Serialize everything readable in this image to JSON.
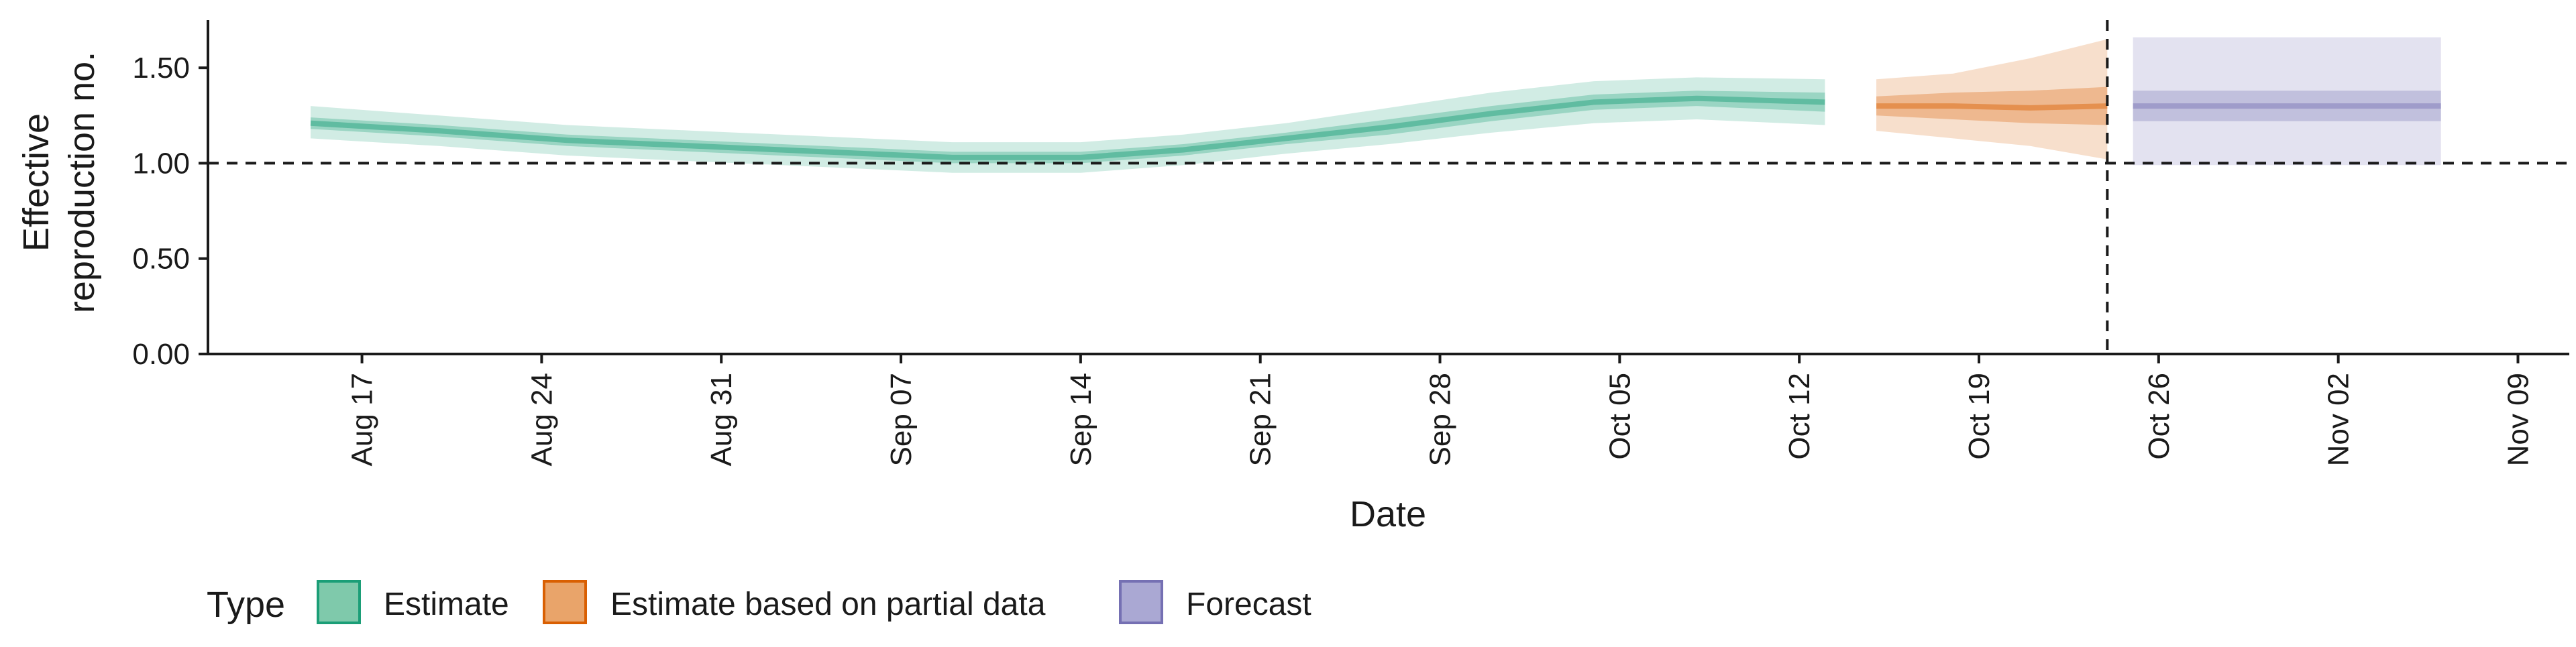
{
  "chart_data": {
    "type": "area",
    "title": "",
    "xlabel": "Date",
    "ylabel": [
      "Effective",
      "reproduction no."
    ],
    "ylim": [
      0,
      1.75
    ],
    "y_ticks": [
      {
        "value": 0,
        "label": "0.00"
      },
      {
        "value": 0.5,
        "label": "0.50"
      },
      {
        "value": 1.0,
        "label": "1.00"
      },
      {
        "value": 1.5,
        "label": "1.50"
      }
    ],
    "xlim": [
      "2021-08-11",
      "2021-11-11"
    ],
    "x_ticks": [
      {
        "date": "2021-08-17",
        "label": "Aug 17"
      },
      {
        "date": "2021-08-24",
        "label": "Aug 24"
      },
      {
        "date": "2021-08-31",
        "label": "Aug 31"
      },
      {
        "date": "2021-09-07",
        "label": "Sep 07"
      },
      {
        "date": "2021-09-14",
        "label": "Sep 14"
      },
      {
        "date": "2021-09-21",
        "label": "Sep 21"
      },
      {
        "date": "2021-09-28",
        "label": "Sep 28"
      },
      {
        "date": "2021-10-05",
        "label": "Oct 05"
      },
      {
        "date": "2021-10-12",
        "label": "Oct 12"
      },
      {
        "date": "2021-10-19",
        "label": "Oct 19"
      },
      {
        "date": "2021-10-26",
        "label": "Oct 26"
      },
      {
        "date": "2021-11-02",
        "label": "Nov 02"
      },
      {
        "date": "2021-11-09",
        "label": "Nov 09"
      }
    ],
    "reference_lines": {
      "horizontal_y": 1.0,
      "vertical_date": "2021-10-24"
    },
    "legend": {
      "title": "Type",
      "position": "bottom-left",
      "items": [
        {
          "label": "Estimate",
          "fill": "#7fc9ab",
          "stroke": "#1b9e77"
        },
        {
          "label": "Estimate based on partial data",
          "fill": "#e9a46a",
          "stroke": "#d95f02"
        },
        {
          "label": "Forecast",
          "fill": "#aaa8d3",
          "stroke": "#7570b3"
        }
      ]
    },
    "series": [
      {
        "name": "Estimate",
        "color": "#1b9e77",
        "points": [
          {
            "date": "2021-08-15",
            "median": 1.21,
            "lo50": 1.18,
            "hi50": 1.24,
            "lo90": 1.13,
            "hi90": 1.3
          },
          {
            "date": "2021-08-20",
            "median": 1.17,
            "lo50": 1.14,
            "hi50": 1.2,
            "lo90": 1.09,
            "hi90": 1.25
          },
          {
            "date": "2021-08-25",
            "median": 1.12,
            "lo50": 1.09,
            "hi50": 1.15,
            "lo90": 1.04,
            "hi90": 1.2
          },
          {
            "date": "2021-08-30",
            "median": 1.09,
            "lo50": 1.06,
            "hi50": 1.12,
            "lo90": 1.01,
            "hi90": 1.17
          },
          {
            "date": "2021-09-04",
            "median": 1.06,
            "lo50": 1.03,
            "hi50": 1.09,
            "lo90": 0.98,
            "hi90": 1.14
          },
          {
            "date": "2021-09-09",
            "median": 1.03,
            "lo50": 1.0,
            "hi50": 1.06,
            "lo90": 0.95,
            "hi90": 1.11
          },
          {
            "date": "2021-09-14",
            "median": 1.03,
            "lo50": 1.0,
            "hi50": 1.06,
            "lo90": 0.95,
            "hi90": 1.11
          },
          {
            "date": "2021-09-18",
            "median": 1.07,
            "lo50": 1.04,
            "hi50": 1.1,
            "lo90": 0.99,
            "hi90": 1.15
          },
          {
            "date": "2021-09-22",
            "median": 1.13,
            "lo50": 1.1,
            "hi50": 1.16,
            "lo90": 1.05,
            "hi90": 1.21
          },
          {
            "date": "2021-09-26",
            "median": 1.19,
            "lo50": 1.15,
            "hi50": 1.23,
            "lo90": 1.1,
            "hi90": 1.29
          },
          {
            "date": "2021-09-30",
            "median": 1.26,
            "lo50": 1.22,
            "hi50": 1.3,
            "lo90": 1.16,
            "hi90": 1.37
          },
          {
            "date": "2021-10-04",
            "median": 1.32,
            "lo50": 1.28,
            "hi50": 1.36,
            "lo90": 1.21,
            "hi90": 1.43
          },
          {
            "date": "2021-10-08",
            "median": 1.34,
            "lo50": 1.3,
            "hi50": 1.38,
            "lo90": 1.23,
            "hi90": 1.45
          },
          {
            "date": "2021-10-13",
            "median": 1.32,
            "lo50": 1.27,
            "hi50": 1.37,
            "lo90": 1.2,
            "hi90": 1.44
          }
        ]
      },
      {
        "name": "Estimate based on partial data",
        "color": "#d95f02",
        "points": [
          {
            "date": "2021-10-15",
            "median": 1.3,
            "lo50": 1.25,
            "hi50": 1.35,
            "lo90": 1.17,
            "hi90": 1.44
          },
          {
            "date": "2021-10-18",
            "median": 1.3,
            "lo50": 1.23,
            "hi50": 1.37,
            "lo90": 1.13,
            "hi90": 1.47
          },
          {
            "date": "2021-10-21",
            "median": 1.29,
            "lo50": 1.21,
            "hi50": 1.38,
            "lo90": 1.09,
            "hi90": 1.55
          },
          {
            "date": "2021-10-24",
            "median": 1.3,
            "lo50": 1.2,
            "hi50": 1.4,
            "lo90": 1.02,
            "hi90": 1.65
          }
        ]
      },
      {
        "name": "Forecast",
        "color": "#7570b3",
        "points": [
          {
            "date": "2021-10-25",
            "median": 1.3,
            "lo50": 1.22,
            "hi50": 1.38,
            "lo90": 0.99,
            "hi90": 1.66
          },
          {
            "date": "2021-11-06",
            "median": 1.3,
            "lo50": 1.22,
            "hi50": 1.38,
            "lo90": 0.99,
            "hi90": 1.66
          }
        ]
      }
    ]
  }
}
